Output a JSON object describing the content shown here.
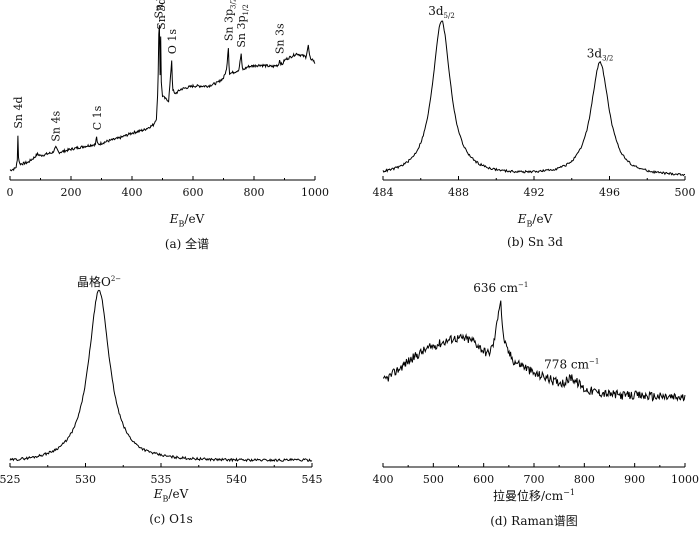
{
  "chart_data": [
    {
      "id": "a",
      "type": "line",
      "caption": "(a) 全谱",
      "xlabel_sym": "E",
      "xlabel_sub": "B",
      "xlabel_unit": "/eV",
      "xlim": [
        0,
        1000
      ],
      "ylim": [
        0,
        100
      ],
      "xticks": [
        0,
        200,
        400,
        600,
        800,
        1000
      ],
      "x": [
        0,
        15,
        20,
        24,
        26,
        28,
        32,
        40,
        60,
        80,
        90,
        100,
        120,
        140,
        150,
        160,
        200,
        250,
        280,
        284,
        286,
        290,
        320,
        360,
        400,
        440,
        470,
        480,
        485,
        488,
        490,
        492,
        494,
        495,
        496,
        500,
        510,
        520,
        525,
        528,
        530,
        532,
        534,
        536,
        540,
        560,
        600,
        650,
        680,
        700,
        710,
        714,
        716,
        718,
        720,
        725,
        740,
        750,
        755,
        758,
        760,
        762,
        765,
        780,
        820,
        860,
        880,
        884,
        888,
        892,
        900,
        940,
        970,
        978,
        982,
        986,
        990,
        1000
      ],
      "y": [
        6,
        7,
        8,
        12,
        28,
        14,
        10,
        10,
        11,
        14,
        16,
        15,
        16,
        17,
        20,
        17,
        19,
        21,
        22,
        27,
        23,
        22,
        24,
        26,
        29,
        31,
        34,
        38,
        55,
        90,
        96,
        65,
        89,
        84,
        60,
        52,
        50,
        49,
        60,
        68,
        74,
        62,
        56,
        55,
        53,
        56,
        58,
        58,
        60,
        63,
        68,
        78,
        82,
        71,
        66,
        66,
        67,
        68,
        74,
        78,
        72,
        69,
        68,
        70,
        71,
        70,
        71,
        74,
        72,
        71,
        74,
        78,
        76,
        83,
        77,
        74,
        75,
        72
      ],
      "annotations": [
        {
          "text": "Sn 4d",
          "x": 26,
          "y": 28
        },
        {
          "text": "Sn 4s",
          "x": 150,
          "y": 20
        },
        {
          "text": "C 1s",
          "x": 285,
          "y": 27
        },
        {
          "text": "Sn 3d",
          "sub": "5/2",
          "x": 487,
          "y": 96
        },
        {
          "text": "Sn 3d",
          "sub": "3/2",
          "x": 495,
          "y": 89
        },
        {
          "text": "O 1s",
          "x": 531,
          "y": 74
        },
        {
          "text": "Sn 3p",
          "sub": "3/2",
          "x": 716,
          "y": 82
        },
        {
          "text": "Sn 3p",
          "sub": "1/2",
          "x": 758,
          "y": 78
        },
        {
          "text": "Sn 3s",
          "x": 884,
          "y": 74
        }
      ]
    },
    {
      "id": "b",
      "type": "line",
      "caption": "(b) Sn 3d",
      "xlabel_sym": "E",
      "xlabel_sub": "B",
      "xlabel_unit": "/eV",
      "xlim": [
        484,
        500
      ],
      "ylim": [
        0,
        100
      ],
      "xticks": [
        484,
        488,
        492,
        496,
        500
      ],
      "peaks": [
        {
          "label": "3d",
          "sub": "5/2",
          "center": 487.1,
          "height": 96,
          "width": 0.55
        },
        {
          "label": "3d",
          "sub": "3/2",
          "center": 495.5,
          "height": 70,
          "width": 0.55
        }
      ],
      "baseline": 2
    },
    {
      "id": "c",
      "type": "line",
      "caption": "(c) O1s",
      "xlabel_sym": "E",
      "xlabel_sub": "B",
      "xlabel_unit": "/eV",
      "xlim": [
        525,
        545
      ],
      "ylim": [
        0,
        100
      ],
      "xticks": [
        525,
        530,
        535,
        540,
        545
      ],
      "peaks": [
        {
          "label": "晶格O",
          "sup": "2−",
          "center": 530.9,
          "height": 97,
          "width": 0.8
        }
      ],
      "baseline": 2
    },
    {
      "id": "d",
      "type": "line",
      "caption": "(d) Raman谱图",
      "xlabel_text": "拉曼位移/cm",
      "xlabel_sup": "−1",
      "xlim": [
        400,
        1000
      ],
      "ylim": [
        0,
        100
      ],
      "xticks": [
        400,
        500,
        600,
        700,
        800,
        900,
        1000
      ],
      "x": [
        400,
        420,
        450,
        480,
        500,
        520,
        540,
        560,
        580,
        600,
        610,
        620,
        625,
        630,
        634,
        638,
        645,
        660,
        680,
        700,
        720,
        740,
        760,
        770,
        775,
        780,
        790,
        800,
        820,
        850,
        880,
        900,
        950,
        1000
      ],
      "y": [
        28,
        34,
        44,
        52,
        56,
        59,
        62,
        62,
        60,
        52,
        50,
        58,
        70,
        86,
        92,
        66,
        54,
        44,
        40,
        34,
        32,
        28,
        27,
        30,
        32,
        29,
        26,
        22,
        20,
        18,
        17,
        17,
        16,
        15
      ],
      "annotations": [
        {
          "text": "636 cm",
          "sup": "−1",
          "x": 634,
          "y": 92
        },
        {
          "text": "778 cm",
          "sup": "−1",
          "x": 775,
          "y": 32
        }
      ]
    }
  ]
}
